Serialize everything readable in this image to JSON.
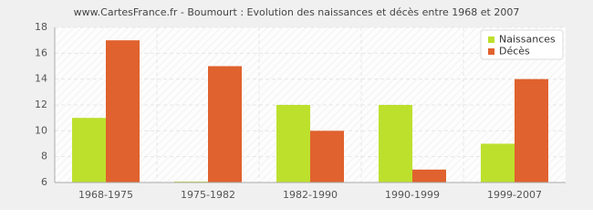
{
  "chart_data": {
    "type": "bar",
    "title": "www.CartesFrance.fr - Boumourt : Evolution des naissances et décès entre 1968 et 2007",
    "categories": [
      "1968-1975",
      "1975-1982",
      "1982-1990",
      "1990-1999",
      "1999-2007"
    ],
    "series": [
      {
        "name": "Naissances",
        "color": "#bde02d",
        "values": [
          11,
          6,
          12,
          12,
          9
        ]
      },
      {
        "name": "Décès",
        "color": "#e0622e",
        "values": [
          17,
          15,
          10,
          7,
          14
        ]
      }
    ],
    "ylim": [
      6,
      18
    ],
    "yticks": [
      6,
      8,
      10,
      12,
      14,
      16,
      18
    ],
    "grid": true,
    "legend": "top-right"
  }
}
